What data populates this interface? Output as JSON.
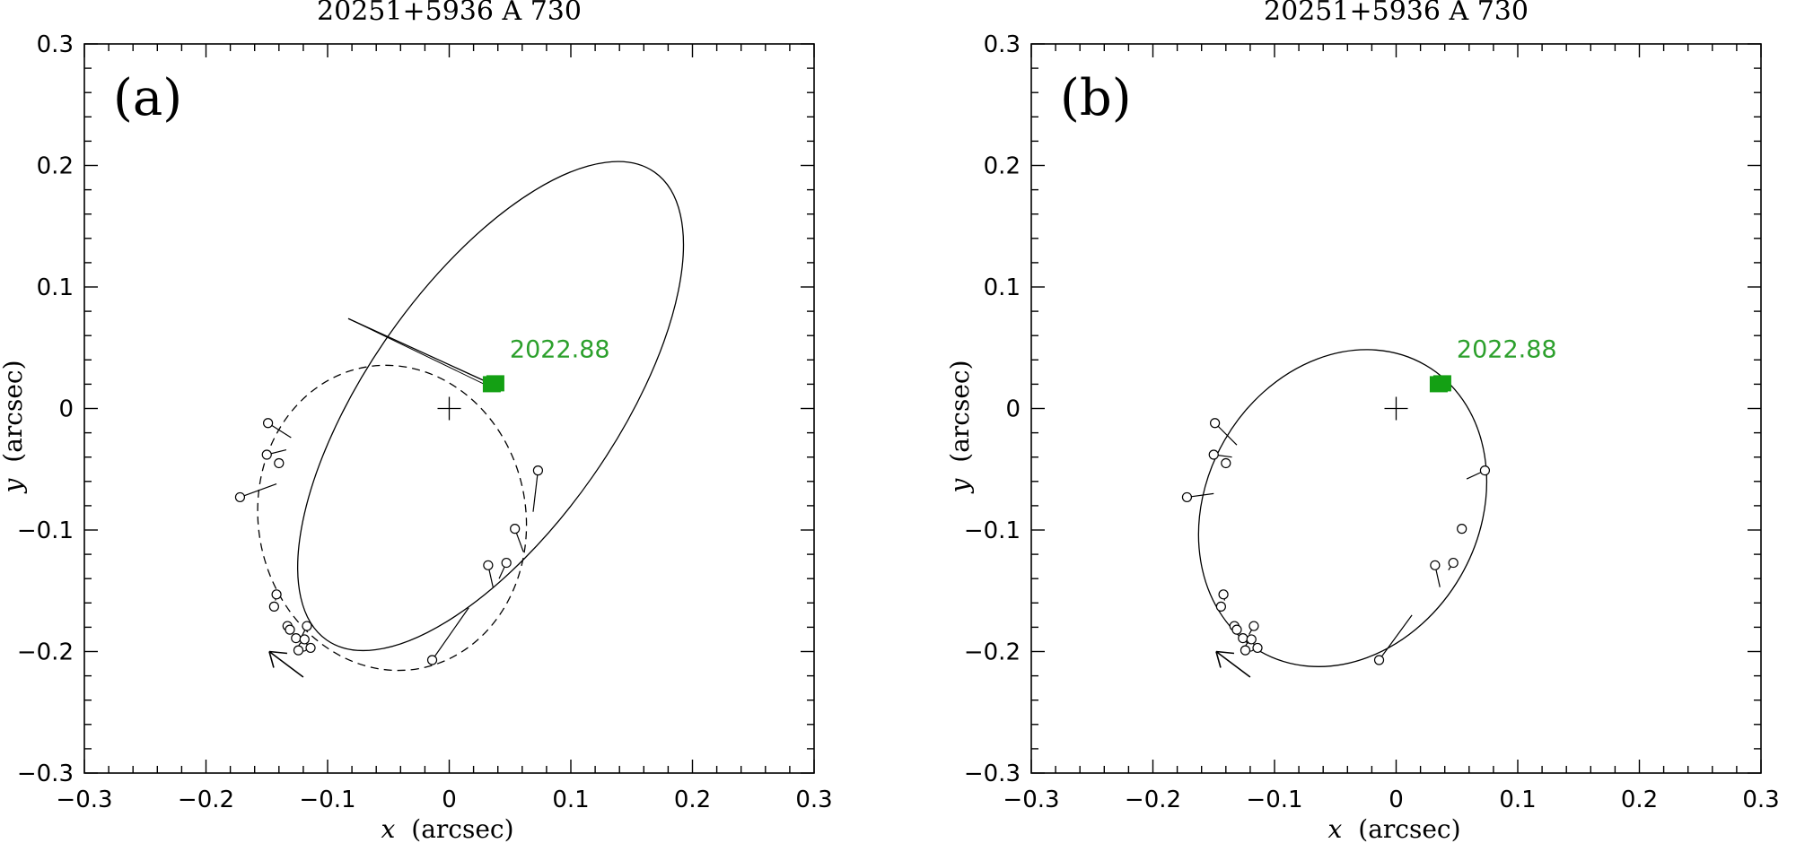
{
  "chart_data": [
    {
      "type": "scatter",
      "panel_label": "(a)",
      "title": "20251+5936    A    730",
      "xlabel_var": "x",
      "xlabel_unit": "(arcsec)",
      "ylabel_var": "y",
      "ylabel_unit": "(arcsec)",
      "xlim": [
        -0.3,
        0.3
      ],
      "ylim": [
        -0.3,
        0.3
      ],
      "x_ticks": [
        "−0.3",
        "−0.2",
        "−0.1",
        "0",
        "0.1",
        "0.2",
        "0.3"
      ],
      "y_ticks": [
        "0.3",
        "0.2",
        "0.1",
        "0",
        "−0.1",
        "−0.2",
        "−0.3"
      ],
      "primary_marker": {
        "x": 0.0,
        "y": 0.0
      },
      "epoch_label": "2022.88",
      "epoch_point": {
        "x": 0.035,
        "y": 0.02
      },
      "orbit_solid": {
        "center": [
          0.034,
          0.002
        ],
        "semi_major": 0.235,
        "semi_minor": 0.102,
        "angle_deg": -55
      },
      "orbit_dashed": {
        "center": [
          -0.047,
          -0.09
        ],
        "semi_major": 0.126,
        "semi_minor": 0.11,
        "angle_deg": 80
      },
      "residual_line": {
        "x1": -0.083,
        "y1": 0.074,
        "x2": 0.035,
        "y2": 0.02
      },
      "observations": [
        {
          "x": -0.149,
          "y": -0.012,
          "ox": -0.13,
          "oy": -0.024
        },
        {
          "x": -0.15,
          "y": -0.038,
          "ox": -0.134,
          "oy": -0.034
        },
        {
          "x": -0.14,
          "y": -0.045,
          "ox": -0.137,
          "oy": -0.042
        },
        {
          "x": -0.172,
          "y": -0.073,
          "ox": -0.142,
          "oy": -0.062
        },
        {
          "x": 0.073,
          "y": -0.051,
          "ox": 0.069,
          "oy": -0.085
        },
        {
          "x": 0.054,
          "y": -0.099,
          "ox": 0.061,
          "oy": -0.118
        },
        {
          "x": 0.032,
          "y": -0.129,
          "ox": 0.036,
          "oy": -0.147
        },
        {
          "x": 0.047,
          "y": -0.127,
          "ox": 0.041,
          "oy": -0.14
        },
        {
          "x": -0.014,
          "y": -0.207,
          "ox": 0.016,
          "oy": -0.164
        },
        {
          "x": -0.142,
          "y": -0.153,
          "ox": -0.143,
          "oy": -0.158
        },
        {
          "x": -0.144,
          "y": -0.163,
          "ox": -0.144,
          "oy": -0.165
        },
        {
          "x": -0.133,
          "y": -0.179,
          "ox": -0.134,
          "oy": -0.181
        },
        {
          "x": -0.131,
          "y": -0.182,
          "ox": -0.132,
          "oy": -0.184
        },
        {
          "x": -0.117,
          "y": -0.179,
          "ox": -0.122,
          "oy": -0.189
        },
        {
          "x": -0.126,
          "y": -0.189,
          "ox": -0.126,
          "oy": -0.19
        },
        {
          "x": -0.12,
          "y": -0.196,
          "ox": -0.121,
          "oy": -0.196
        },
        {
          "x": -0.114,
          "y": -0.197,
          "ox": -0.116,
          "oy": -0.2
        },
        {
          "x": -0.124,
          "y": -0.199,
          "ox": -0.122,
          "oy": -0.198
        },
        {
          "x": -0.119,
          "y": -0.19,
          "ox": -0.12,
          "oy": -0.192
        }
      ],
      "arrow": {
        "from": [
          -0.12,
          -0.221
        ],
        "to": [
          -0.148,
          -0.2
        ]
      }
    },
    {
      "type": "scatter",
      "panel_label": "(b)",
      "title": "20251+5936    A    730",
      "xlabel_var": "x",
      "xlabel_unit": "(arcsec)",
      "ylabel_var": "y",
      "ylabel_unit": "(arcsec)",
      "xlim": [
        -0.3,
        0.3
      ],
      "ylim": [
        -0.3,
        0.3
      ],
      "x_ticks": [
        "−0.3",
        "−0.2",
        "−0.1",
        "0",
        "0.1",
        "0.2",
        "0.3"
      ],
      "y_ticks": [
        "0.3",
        "0.2",
        "0.1",
        "0",
        "−0.1",
        "−0.2",
        "−0.3"
      ],
      "primary_marker": {
        "x": 0.0,
        "y": 0.0
      },
      "epoch_label": "2022.88",
      "epoch_point": {
        "x": 0.035,
        "y": 0.02
      },
      "orbit_solid": {
        "center": [
          -0.044,
          -0.082
        ],
        "semi_major": 0.136,
        "semi_minor": 0.112,
        "angle_deg": -60
      },
      "observations": [
        {
          "x": -0.149,
          "y": -0.012,
          "ox": -0.131,
          "oy": -0.03
        },
        {
          "x": -0.15,
          "y": -0.038,
          "ox": -0.135,
          "oy": -0.04
        },
        {
          "x": -0.14,
          "y": -0.045,
          "ox": -0.137,
          "oy": -0.044
        },
        {
          "x": -0.172,
          "y": -0.073,
          "ox": -0.15,
          "oy": -0.07
        },
        {
          "x": 0.073,
          "y": -0.051,
          "ox": 0.058,
          "oy": -0.058
        },
        {
          "x": 0.054,
          "y": -0.099,
          "ox": 0.052,
          "oy": -0.1
        },
        {
          "x": 0.032,
          "y": -0.129,
          "ox": 0.036,
          "oy": -0.147
        },
        {
          "x": 0.047,
          "y": -0.127,
          "ox": 0.043,
          "oy": -0.133
        },
        {
          "x": -0.014,
          "y": -0.207,
          "ox": 0.013,
          "oy": -0.17
        },
        {
          "x": -0.142,
          "y": -0.153,
          "ox": -0.141,
          "oy": -0.158
        },
        {
          "x": -0.144,
          "y": -0.163,
          "ox": -0.142,
          "oy": -0.164
        },
        {
          "x": -0.133,
          "y": -0.179,
          "ox": -0.133,
          "oy": -0.181
        },
        {
          "x": -0.131,
          "y": -0.182,
          "ox": -0.131,
          "oy": -0.183
        },
        {
          "x": -0.117,
          "y": -0.179,
          "ox": -0.121,
          "oy": -0.186
        },
        {
          "x": -0.126,
          "y": -0.189,
          "ox": -0.126,
          "oy": -0.19
        },
        {
          "x": -0.12,
          "y": -0.196,
          "ox": -0.12,
          "oy": -0.196
        },
        {
          "x": -0.114,
          "y": -0.197,
          "ox": -0.116,
          "oy": -0.199
        },
        {
          "x": -0.124,
          "y": -0.199,
          "ox": -0.122,
          "oy": -0.198
        },
        {
          "x": -0.119,
          "y": -0.19,
          "ox": -0.12,
          "oy": -0.192
        }
      ],
      "arrow": {
        "from": [
          -0.12,
          -0.221
        ],
        "to": [
          -0.148,
          -0.2
        ]
      }
    }
  ],
  "colors": {
    "ink": "#000000",
    "epoch": "#2ca02c",
    "epoch_marker": "#14a014"
  }
}
